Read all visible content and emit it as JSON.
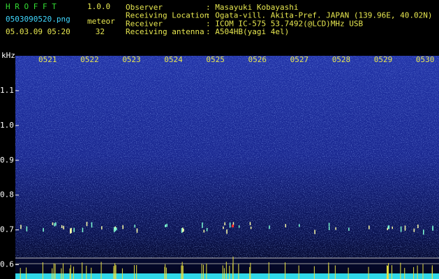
{
  "header": {
    "app_name": "H R O F F T",
    "version": "1.0.0",
    "filename": "0503090520.png",
    "datetime": "05.03.09 05:20",
    "count_label": "meteor",
    "count": 32
  },
  "info": [
    {
      "label": "Observer",
      "value": ": Masayuki Kobayashi"
    },
    {
      "label": "Receiving Location",
      "value": ": Ogata-vill. Akita-Pref. JAPAN (139.96E, 40.02N)"
    },
    {
      "label": "Receiver",
      "value": ": ICOM IC-575 53.7492(@LCD)MHz USB"
    },
    {
      "label": "Receiving antenna",
      "value": ": A504HB(yagi 4el)"
    }
  ],
  "spectrogram": {
    "y_unit": "kHz",
    "y_labels": [
      "1.1",
      "1.0",
      "0.9",
      "0.8",
      "0.7",
      "0.6"
    ],
    "time_labels": [
      "0521",
      "0522",
      "0523",
      "0524",
      "0525",
      "0526",
      "0527",
      "0528",
      "0529",
      "0530"
    ]
  }
}
